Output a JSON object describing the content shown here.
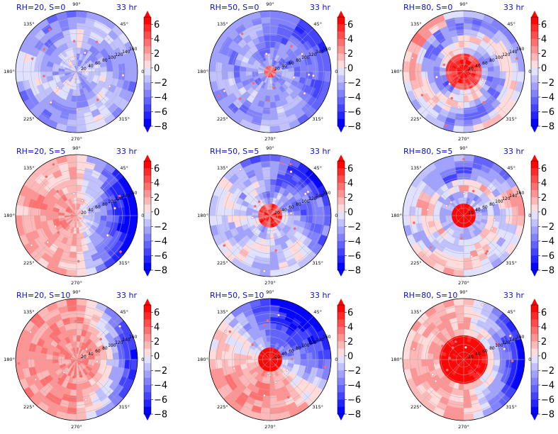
{
  "figure": {
    "time_label": "33 hr",
    "angle_labels": [
      "0°",
      "45°",
      "90°",
      "135°",
      "180°",
      "225°",
      "270°",
      "315°"
    ],
    "radial_ticks": [
      "20",
      "40",
      "60",
      "80",
      "100",
      "120",
      "140",
      "160"
    ],
    "colorbar_ticks": [
      "6",
      "4",
      "2",
      "0",
      "−2",
      "−4",
      "−6",
      "−8"
    ],
    "colors": {
      "title": "#1010c8",
      "positive": "#ff0000",
      "negative": "#0000ff",
      "neutral": "#ffffff"
    }
  },
  "chart_data": [
    {
      "type": "heatmap",
      "projection": "polar",
      "title": "RH=20, S=0",
      "annotation": "33 hr",
      "rh": 20,
      "s": 0,
      "vmin": -8,
      "vmax": 7,
      "colorbar_extend": "both",
      "levels": [
        -8,
        -7,
        -6,
        -5,
        -4,
        -3,
        -2,
        -1,
        0,
        1,
        2,
        3,
        4,
        5,
        6,
        7
      ],
      "center_value": -1,
      "pattern": "mostly weak negative (blue) with scattered small positive cells"
    },
    {
      "type": "heatmap",
      "projection": "polar",
      "title": "RH=50, S=0",
      "annotation": "33 hr",
      "rh": 50,
      "s": 0,
      "vmin": -8,
      "vmax": 7,
      "colorbar_extend": "both",
      "levels": [
        -8,
        -7,
        -6,
        -5,
        -4,
        -3,
        -2,
        -1,
        0,
        1,
        2,
        3,
        4,
        5,
        6,
        7
      ],
      "center_value": 3,
      "pattern": "small positive core near center, negative surroundings, strong negative toward 30°"
    },
    {
      "type": "heatmap",
      "projection": "polar",
      "title": "RH=80, S=0",
      "annotation": "33 hr",
      "rh": 80,
      "s": 0,
      "vmin": -8,
      "vmax": 7,
      "colorbar_extend": "both",
      "levels": [
        -8,
        -7,
        -6,
        -5,
        -4,
        -3,
        -2,
        -1,
        0,
        1,
        2,
        3,
        4,
        5,
        6,
        7
      ],
      "center_value": 7,
      "pattern": "strong positive core with spiral negative bands"
    },
    {
      "type": "heatmap",
      "projection": "polar",
      "title": "RH=20, S=5",
      "annotation": "33 hr",
      "rh": 20,
      "s": 5,
      "vmin": -8,
      "vmax": 7,
      "colorbar_extend": "both",
      "levels": [
        -8,
        -7,
        -6,
        -5,
        -4,
        -3,
        -2,
        -1,
        0,
        1,
        2,
        3,
        4,
        5,
        6,
        7
      ],
      "center_value": 3,
      "pattern": "weak positive west half, strong negative east side"
    },
    {
      "type": "heatmap",
      "projection": "polar",
      "title": "RH=50, S=5",
      "annotation": "33 hr",
      "rh": 50,
      "s": 5,
      "vmin": -8,
      "vmax": 7,
      "colorbar_extend": "both",
      "levels": [
        -8,
        -7,
        -6,
        -5,
        -4,
        -3,
        -2,
        -1,
        0,
        1,
        2,
        3,
        4,
        5,
        6,
        7
      ],
      "center_value": 5,
      "pattern": "positive core, negative north-east, mixed elsewhere"
    },
    {
      "type": "heatmap",
      "projection": "polar",
      "title": "RH=80, S=5",
      "annotation": "33 hr",
      "rh": 80,
      "s": 5,
      "vmin": -8,
      "vmax": 7,
      "colorbar_extend": "both",
      "levels": [
        -8,
        -7,
        -6,
        -5,
        -4,
        -3,
        -2,
        -1,
        0,
        1,
        2,
        3,
        4,
        5,
        6,
        7
      ],
      "center_value": 7,
      "pattern": "strong positive core, negative ring, positive outer bands south-west"
    },
    {
      "type": "heatmap",
      "projection": "polar",
      "title": "RH=20, S=10",
      "annotation": "33 hr",
      "rh": 20,
      "s": 10,
      "vmin": -8,
      "vmax": 7,
      "colorbar_extend": "both",
      "levels": [
        -8,
        -7,
        -6,
        -5,
        -4,
        -3,
        -2,
        -1,
        0,
        1,
        2,
        3,
        4,
        5,
        6,
        7
      ],
      "center_value": 3,
      "pattern": "broad weak positive west and south, strong negative east edge"
    },
    {
      "type": "heatmap",
      "projection": "polar",
      "title": "RH=50, S=10",
      "annotation": "33 hr",
      "rh": 50,
      "s": 10,
      "vmin": -8,
      "vmax": 7,
      "colorbar_extend": "both",
      "levels": [
        -8,
        -7,
        -6,
        -5,
        -4,
        -3,
        -2,
        -1,
        0,
        1,
        2,
        3,
        4,
        5,
        6,
        7
      ],
      "center_value": 7,
      "pattern": "strong positive core and south-west, strong negative north-east"
    },
    {
      "type": "heatmap",
      "projection": "polar",
      "title": "RH=80, S=10",
      "annotation": "33 hr",
      "rh": 80,
      "s": 10,
      "vmin": -8,
      "vmax": 7,
      "colorbar_extend": "both",
      "levels": [
        -8,
        -7,
        -6,
        -5,
        -4,
        -3,
        -2,
        -1,
        0,
        1,
        2,
        3,
        4,
        5,
        6,
        7
      ],
      "center_value": 7,
      "pattern": "large strong positive core, negative east side"
    }
  ]
}
